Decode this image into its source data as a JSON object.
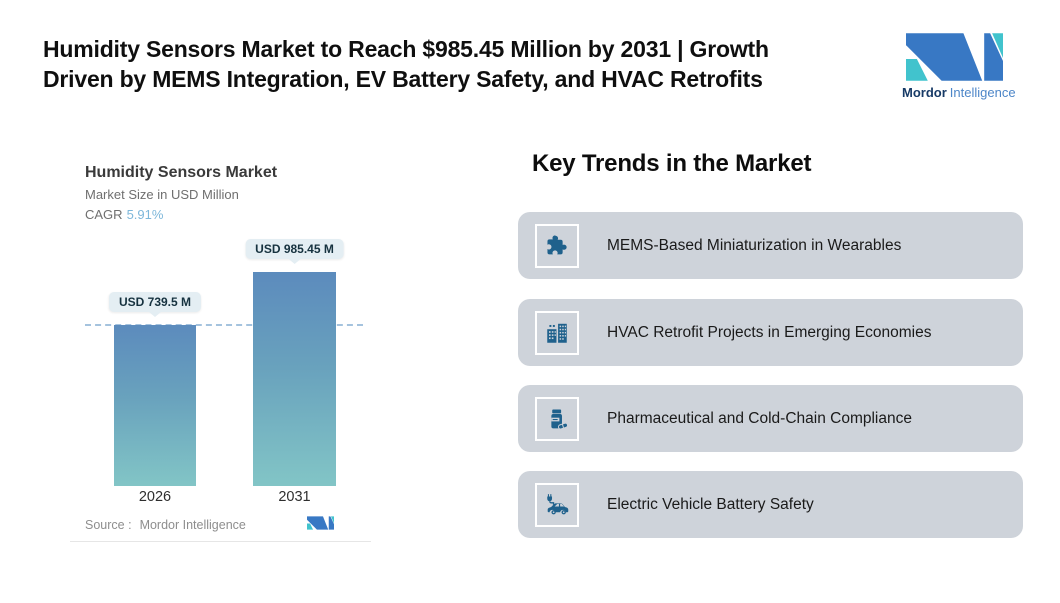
{
  "header": {
    "title_line1": "Humidity Sensors Market to Reach $985.45 Million by 2031 | Growth",
    "title_line2": "Driven by MEMS Integration, EV Battery Safety, and HVAC Retrofits",
    "logo": {
      "brand_bold": "Mordor",
      "brand_light": "Intelligence"
    }
  },
  "chart": {
    "title": "Humidity Sensors Market",
    "subtitle": "Market Size in USD Million",
    "cagr_label": "CAGR",
    "cagr_value": "5.91%",
    "source_label": "Source :",
    "source_value": "Mordor Intelligence"
  },
  "chart_data": {
    "type": "bar",
    "title": "Humidity Sensors Market",
    "ylabel": "Market Size in USD Million",
    "cagr_percent": 5.91,
    "categories": [
      "2026",
      "2031"
    ],
    "values": [
      739.5,
      985.45
    ],
    "value_labels": [
      "USD 739.5 M",
      "USD 985.45 M"
    ],
    "value_unit": "USD Million",
    "ylim": [
      0,
      1100
    ],
    "grid": false,
    "legend": false,
    "reference_line": 739.5,
    "bar_gradient_top": "#5c8bbd",
    "bar_gradient_bottom": "#82c5c6",
    "reference_line_color": "#a5c3de"
  },
  "trends": {
    "heading": "Key Trends in the Market",
    "items": [
      {
        "icon": "puzzle-icon",
        "label": "MEMS-Based Miniaturization in Wearables"
      },
      {
        "icon": "buildings-icon",
        "label": "HVAC Retrofit Projects in Emerging Economies"
      },
      {
        "icon": "pill-bottle-icon",
        "label": "Pharmaceutical and Cold-Chain Compliance"
      },
      {
        "icon": "electric-car-icon",
        "label": "Electric Vehicle Battery Safety"
      }
    ]
  },
  "colors": {
    "logo_blue": "#3878c4",
    "logo_teal": "#41c3cd",
    "trend_icon_blue": "#1f618c",
    "card_background": "#ced3da",
    "cagr_value_color": "#7db7da",
    "pill_background": "#e4eef3",
    "pill_text": "#16323f"
  }
}
